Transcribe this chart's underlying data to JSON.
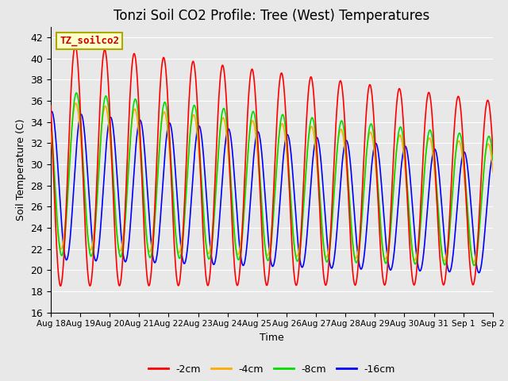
{
  "title": "Tonzi Soil CO2 Profile: Tree (West) Temperatures",
  "xlabel": "Time",
  "ylabel": "Soil Temperature (C)",
  "ylim": [
    16,
    43
  ],
  "yticks": [
    16,
    18,
    20,
    22,
    24,
    26,
    28,
    30,
    32,
    34,
    36,
    38,
    40,
    42
  ],
  "xtick_labels": [
    "Aug 18",
    "Aug 19",
    "Aug 20",
    "Aug 21",
    "Aug 22",
    "Aug 23",
    "Aug 24",
    "Aug 25",
    "Aug 26",
    "Aug 27",
    "Aug 28",
    "Aug 29",
    "Aug 30",
    "Aug 31",
    "Sep 1",
    "Sep 2"
  ],
  "n_days": 16,
  "annotation_text": "TZ_soilco2",
  "annotation_color": "#cc0000",
  "annotation_bg": "#ffffcc",
  "annotation_border": "#aaaa00",
  "plot_bg": "#e8e8e8",
  "grid_color": "#ffffff",
  "line_colors": [
    "#ff0000",
    "#ffaa00",
    "#00dd00",
    "#0000ff"
  ],
  "line_labels": [
    "-2cm",
    "-4cm",
    "-8cm",
    "-16cm"
  ],
  "line_width": 1.2,
  "title_fontsize": 12,
  "axis_fontsize": 9,
  "legend_fontsize": 9
}
